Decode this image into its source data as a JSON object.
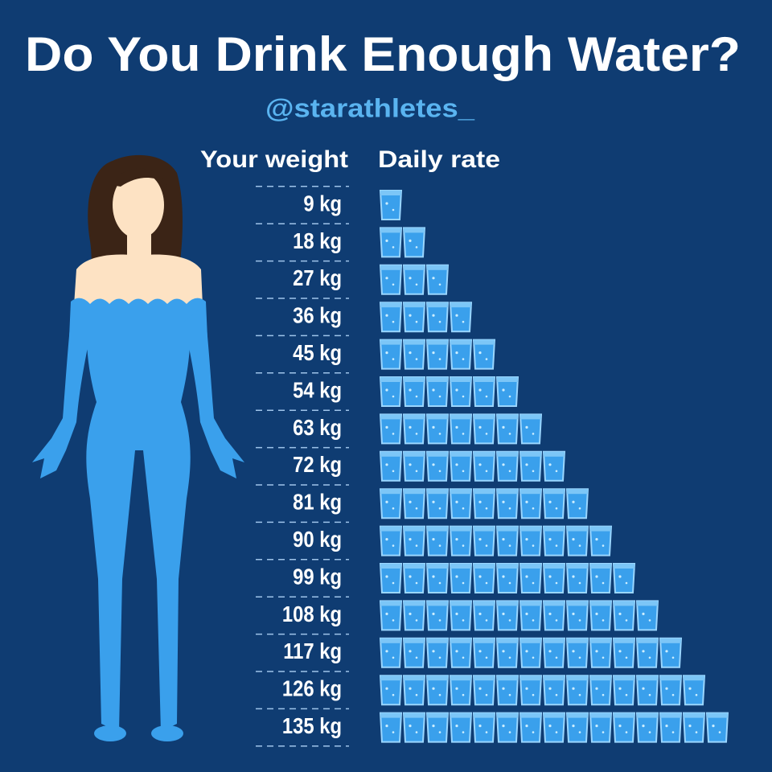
{
  "chart_data": {
    "type": "pictograph",
    "title": "Do You Drink Enough Water?",
    "subtitle": "@starathletes_",
    "category_label": "Your weight",
    "value_label": "Daily rate",
    "categories": [
      "9 kg",
      "18 kg",
      "27 kg",
      "36 kg",
      "45 kg",
      "54 kg",
      "63 kg",
      "72 kg",
      "81 kg",
      "90 kg",
      "99 kg",
      "108 kg",
      "117 kg",
      "126 kg",
      "135 kg"
    ],
    "values": [
      1,
      2,
      3,
      4,
      5,
      6,
      7,
      8,
      9,
      10,
      11,
      12,
      13,
      14,
      15
    ],
    "color": "#3aa0ec"
  }
}
